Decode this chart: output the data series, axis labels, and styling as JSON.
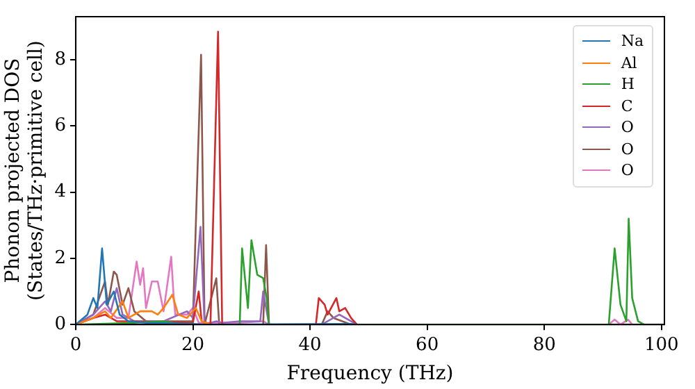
{
  "chart_data": {
    "type": "line",
    "xlabel": "Frequency (THz)",
    "ylabel": "Phonon projected DOS\n(States/THz·primitive cell)",
    "xlim": [
      0,
      100.5
    ],
    "ylim": [
      0,
      9.3
    ],
    "xticks": [
      0,
      20,
      40,
      60,
      80,
      100
    ],
    "yticks": [
      0,
      2,
      4,
      6,
      8
    ],
    "grid": false,
    "legend": "top right",
    "marker": "none",
    "line_style": "solid",
    "series": [
      {
        "name": "Na",
        "color": "#1f77b4",
        "x": [
          0,
          2,
          3,
          3.7,
          4.5,
          5.3,
          6.5,
          7.5,
          9,
          12,
          20,
          22,
          47,
          48
        ],
        "values": [
          0,
          0.3,
          0.8,
          0.5,
          2.3,
          0.6,
          1.0,
          0.3,
          0.1,
          0.05,
          0.02,
          0,
          0.02,
          0
        ]
      },
      {
        "name": "Al",
        "color": "#ff7f0e",
        "x": [
          0,
          3,
          5,
          6,
          8,
          9,
          11,
          13,
          14,
          15,
          16.5,
          17.5,
          19,
          20.5,
          21.5,
          23
        ],
        "values": [
          0,
          0.2,
          0.4,
          0.2,
          0.7,
          0.2,
          0.4,
          0.4,
          0.3,
          0.5,
          0.9,
          0.3,
          0.2,
          0.5,
          0.1,
          0
        ]
      },
      {
        "name": "H",
        "color": "#2ca02c",
        "x": [
          0,
          10,
          15,
          18,
          28,
          28.4,
          29.4,
          30,
          31,
          32,
          32.6,
          33,
          91,
          92,
          93,
          94,
          94.4,
          95,
          96,
          97
        ],
        "values": [
          0,
          0.05,
          0.1,
          0,
          0,
          2.3,
          0.5,
          2.55,
          1.5,
          1.4,
          0.8,
          0,
          0,
          2.3,
          0.6,
          0.1,
          3.2,
          0.8,
          0.1,
          0
        ]
      },
      {
        "name": "C",
        "color": "#d62728",
        "x": [
          0,
          3,
          5,
          7,
          10,
          20,
          21,
          21.5,
          23,
          24.3,
          25,
          32,
          41,
          41.5,
          42.5,
          43,
          44.5,
          45,
          46,
          47,
          48
        ],
        "values": [
          0,
          0.2,
          0.3,
          0.1,
          0.1,
          0.05,
          1.0,
          0.1,
          0,
          8.85,
          0,
          0,
          0,
          0.8,
          0.6,
          0.3,
          0.8,
          0.4,
          0.5,
          0.2,
          0
        ]
      },
      {
        "name": "O",
        "color": "#9467bd",
        "x": [
          0,
          3,
          5,
          6,
          7,
          8,
          10,
          15,
          19,
          20,
          21.3,
          22,
          24,
          25,
          28,
          31.5,
          32,
          33,
          42,
          43,
          45,
          47,
          48
        ],
        "values": [
          0,
          0.3,
          0.7,
          0.4,
          1.1,
          0.3,
          0.1,
          0.1,
          0.4,
          0.2,
          2.95,
          0,
          0.1,
          0.05,
          0.1,
          0.1,
          1.0,
          0,
          0,
          0.1,
          0.3,
          0.1,
          0
        ]
      },
      {
        "name": "O",
        "color": "#8c564b",
        "x": [
          0,
          3,
          5,
          5.5,
          6.5,
          7,
          8,
          9,
          10,
          12,
          15,
          20,
          21.4,
          22,
          24,
          24.5,
          32,
          32.5,
          33,
          42,
          43,
          44,
          47
        ],
        "values": [
          0,
          0.3,
          1.3,
          0.6,
          1.6,
          1.5,
          0.6,
          1.1,
          0.4,
          0.1,
          0.1,
          0.1,
          8.15,
          0,
          1.4,
          0,
          0,
          2.4,
          0,
          0,
          0.4,
          0.2,
          0
        ]
      },
      {
        "name": "O",
        "color": "#e377c2",
        "x": [
          0,
          3,
          5,
          7,
          9,
          10.4,
          11,
          11.5,
          12,
          13,
          14,
          15,
          16.3,
          16.7,
          17,
          19,
          20,
          21,
          28,
          32,
          33,
          91,
          92,
          93,
          94.3,
          95
        ],
        "values": [
          0,
          0.2,
          0.5,
          0.2,
          0.2,
          1.9,
          1.2,
          1.7,
          0.5,
          1.3,
          1.3,
          0.4,
          2.05,
          0.9,
          0.3,
          0.3,
          0.5,
          0.05,
          0.05,
          0.1,
          0,
          0,
          0.15,
          0,
          0.15,
          0
        ]
      }
    ]
  }
}
